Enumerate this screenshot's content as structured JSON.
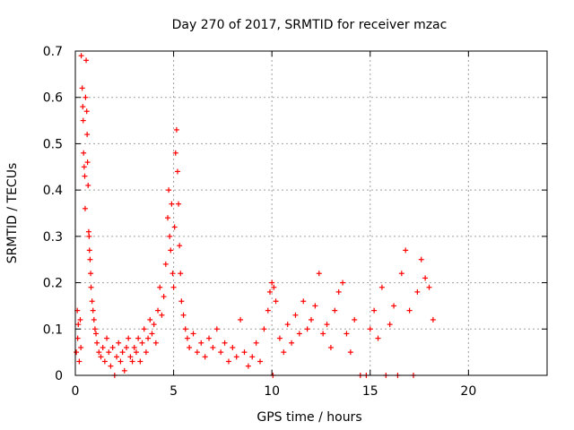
{
  "chart_data": {
    "type": "scatter",
    "title": "Day 270 of 2017, SRMTID for receiver mzac",
    "xlabel": "GPS time / hours",
    "ylabel": "SRMTID / TECUs",
    "xlim": [
      0,
      24
    ],
    "ylim": [
      0,
      0.7
    ],
    "x_ticks": [
      0,
      5,
      10,
      15,
      20
    ],
    "y_ticks": [
      0,
      0.1,
      0.2,
      0.3,
      0.4,
      0.5,
      0.6,
      0.7
    ],
    "x_tick_labels": [
      "0",
      "5",
      "10",
      "15",
      "20"
    ],
    "y_tick_labels": [
      "0",
      "0.1",
      "0.2",
      "0.3",
      "0.4",
      "0.5",
      "0.6",
      "0.7"
    ],
    "grid": true,
    "marker": "+",
    "color": "#ff0000",
    "series": [
      {
        "name": "SRMTID",
        "points": [
          [
            0.05,
            0.05
          ],
          [
            0.1,
            0.14
          ],
          [
            0.12,
            0.08
          ],
          [
            0.15,
            0.11
          ],
          [
            0.2,
            0.03
          ],
          [
            0.25,
            0.12
          ],
          [
            0.28,
            0.06
          ],
          [
            0.3,
            0.69
          ],
          [
            0.35,
            0.62
          ],
          [
            0.38,
            0.58
          ],
          [
            0.4,
            0.55
          ],
          [
            0.42,
            0.48
          ],
          [
            0.45,
            0.45
          ],
          [
            0.48,
            0.43
          ],
          [
            0.5,
            0.36
          ],
          [
            0.52,
            0.6
          ],
          [
            0.55,
            0.68
          ],
          [
            0.58,
            0.57
          ],
          [
            0.6,
            0.52
          ],
          [
            0.62,
            0.46
          ],
          [
            0.65,
            0.41
          ],
          [
            0.68,
            0.31
          ],
          [
            0.7,
            0.3
          ],
          [
            0.72,
            0.27
          ],
          [
            0.75,
            0.25
          ],
          [
            0.78,
            0.22
          ],
          [
            0.8,
            0.19
          ],
          [
            0.85,
            0.16
          ],
          [
            0.9,
            0.14
          ],
          [
            0.95,
            0.12
          ],
          [
            1.0,
            0.1
          ],
          [
            1.05,
            0.09
          ],
          [
            1.1,
            0.07
          ],
          [
            1.2,
            0.05
          ],
          [
            1.3,
            0.04
          ],
          [
            1.4,
            0.06
          ],
          [
            1.5,
            0.03
          ],
          [
            1.6,
            0.08
          ],
          [
            1.7,
            0.05
          ],
          [
            1.8,
            0.02
          ],
          [
            1.9,
            0.06
          ],
          [
            2.0,
            0.0
          ],
          [
            2.1,
            0.04
          ],
          [
            2.2,
            0.07
          ],
          [
            2.3,
            0.03
          ],
          [
            2.4,
            0.05
          ],
          [
            2.5,
            0.01
          ],
          [
            2.6,
            0.06
          ],
          [
            2.7,
            0.08
          ],
          [
            2.8,
            0.04
          ],
          [
            2.9,
            0.03
          ],
          [
            3.0,
            0.06
          ],
          [
            3.1,
            0.05
          ],
          [
            3.2,
            0.08
          ],
          [
            3.3,
            0.03
          ],
          [
            3.4,
            0.07
          ],
          [
            3.5,
            0.1
          ],
          [
            3.6,
            0.05
          ],
          [
            3.7,
            0.08
          ],
          [
            3.8,
            0.12
          ],
          [
            3.9,
            0.09
          ],
          [
            4.0,
            0.11
          ],
          [
            4.1,
            0.07
          ],
          [
            4.2,
            0.14
          ],
          [
            4.3,
            0.19
          ],
          [
            4.4,
            0.13
          ],
          [
            4.5,
            0.17
          ],
          [
            4.6,
            0.24
          ],
          [
            4.7,
            0.34
          ],
          [
            4.75,
            0.4
          ],
          [
            4.8,
            0.3
          ],
          [
            4.85,
            0.27
          ],
          [
            4.9,
            0.37
          ],
          [
            4.95,
            0.22
          ],
          [
            5.0,
            0.19
          ],
          [
            5.05,
            0.32
          ],
          [
            5.1,
            0.48
          ],
          [
            5.15,
            0.53
          ],
          [
            5.2,
            0.44
          ],
          [
            5.25,
            0.37
          ],
          [
            5.3,
            0.28
          ],
          [
            5.35,
            0.22
          ],
          [
            5.4,
            0.16
          ],
          [
            5.5,
            0.13
          ],
          [
            5.6,
            0.1
          ],
          [
            5.7,
            0.08
          ],
          [
            5.8,
            0.06
          ],
          [
            6.0,
            0.09
          ],
          [
            6.2,
            0.05
          ],
          [
            6.4,
            0.07
          ],
          [
            6.6,
            0.04
          ],
          [
            6.8,
            0.08
          ],
          [
            7.0,
            0.06
          ],
          [
            7.2,
            0.1
          ],
          [
            7.4,
            0.05
          ],
          [
            7.6,
            0.07
          ],
          [
            7.8,
            0.03
          ],
          [
            8.0,
            0.06
          ],
          [
            8.2,
            0.04
          ],
          [
            8.4,
            0.12
          ],
          [
            8.6,
            0.05
          ],
          [
            8.8,
            0.02
          ],
          [
            9.0,
            0.04
          ],
          [
            9.2,
            0.07
          ],
          [
            9.4,
            0.03
          ],
          [
            9.6,
            0.1
          ],
          [
            9.8,
            0.14
          ],
          [
            9.9,
            0.18
          ],
          [
            10.0,
            0.2
          ],
          [
            10.05,
            0.0
          ],
          [
            10.1,
            0.19
          ],
          [
            10.2,
            0.16
          ],
          [
            10.4,
            0.08
          ],
          [
            10.6,
            0.05
          ],
          [
            10.8,
            0.11
          ],
          [
            11.0,
            0.07
          ],
          [
            11.2,
            0.13
          ],
          [
            11.4,
            0.09
          ],
          [
            11.6,
            0.16
          ],
          [
            11.8,
            0.1
          ],
          [
            12.0,
            0.12
          ],
          [
            12.2,
            0.15
          ],
          [
            12.4,
            0.22
          ],
          [
            12.6,
            0.09
          ],
          [
            12.8,
            0.11
          ],
          [
            13.0,
            0.06
          ],
          [
            13.2,
            0.14
          ],
          [
            13.4,
            0.18
          ],
          [
            13.6,
            0.2
          ],
          [
            13.8,
            0.09
          ],
          [
            14.0,
            0.05
          ],
          [
            14.2,
            0.12
          ],
          [
            14.5,
            0.0
          ],
          [
            14.8,
            0.0
          ],
          [
            15.0,
            0.1
          ],
          [
            15.2,
            0.14
          ],
          [
            15.4,
            0.08
          ],
          [
            15.6,
            0.19
          ],
          [
            15.8,
            0.0
          ],
          [
            16.0,
            0.11
          ],
          [
            16.2,
            0.15
          ],
          [
            16.4,
            0.0
          ],
          [
            16.6,
            0.22
          ],
          [
            16.8,
            0.27
          ],
          [
            17.0,
            0.14
          ],
          [
            17.2,
            0.0
          ],
          [
            17.4,
            0.18
          ],
          [
            17.6,
            0.25
          ],
          [
            17.8,
            0.21
          ],
          [
            18.0,
            0.19
          ],
          [
            18.2,
            0.12
          ]
        ]
      }
    ]
  }
}
